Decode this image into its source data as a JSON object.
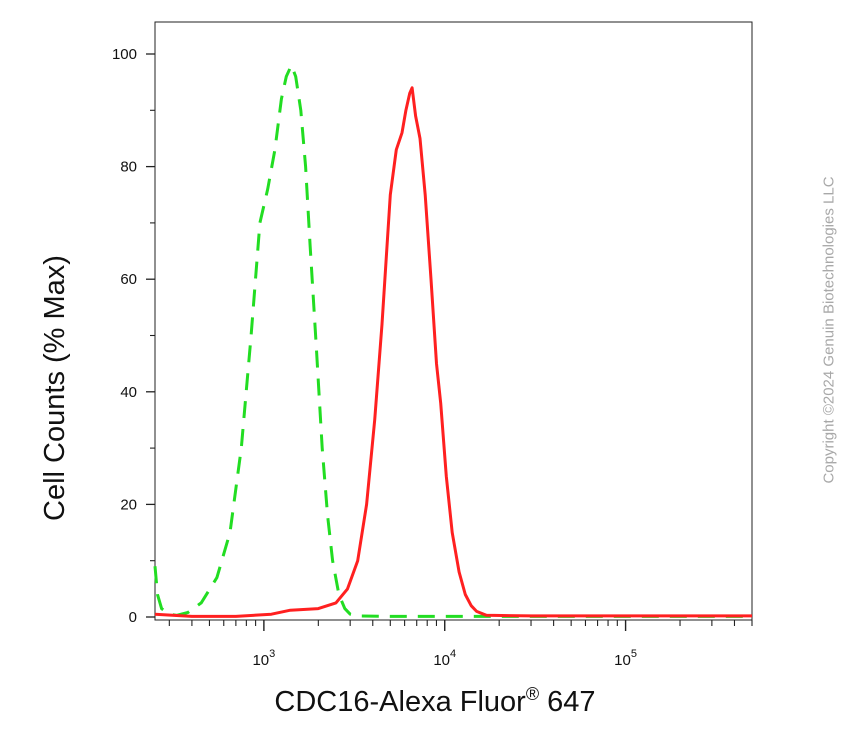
{
  "chart_data": {
    "type": "line",
    "title": "",
    "xlabel": "CDC16-Alexa Fluor",
    "xlabel_superscript": "®",
    "xlabel_suffix": " 647",
    "ylabel": "Cell Counts (% Max)",
    "x_scale": "log",
    "xlim": [
      250,
      500000
    ],
    "ylim": [
      0,
      100
    ],
    "y_ticks": [
      0,
      20,
      40,
      60,
      80,
      100
    ],
    "x_major_ticks": [
      {
        "base": "10",
        "exp": "3",
        "value": 1000
      },
      {
        "base": "10",
        "exp": "4",
        "value": 10000
      },
      {
        "base": "10",
        "exp": "5",
        "value": 100000
      }
    ],
    "grid": false,
    "legend": "none",
    "series": [
      {
        "color": "#22dd22",
        "style": "dashed",
        "points": [
          [
            250,
            9
          ],
          [
            258,
            4
          ],
          [
            272,
            1.5
          ],
          [
            300,
            0.5
          ],
          [
            330,
            0.3
          ],
          [
            380,
            0.8
          ],
          [
            450,
            2.5
          ],
          [
            550,
            7
          ],
          [
            650,
            15
          ],
          [
            750,
            30
          ],
          [
            850,
            50
          ],
          [
            950,
            70
          ],
          [
            1050,
            76
          ],
          [
            1150,
            83
          ],
          [
            1250,
            92
          ],
          [
            1330,
            96
          ],
          [
            1420,
            98
          ],
          [
            1500,
            96
          ],
          [
            1600,
            90
          ],
          [
            1700,
            80
          ],
          [
            1800,
            66
          ],
          [
            1950,
            48
          ],
          [
            2100,
            30
          ],
          [
            2250,
            18
          ],
          [
            2400,
            10
          ],
          [
            2600,
            4
          ],
          [
            2800,
            1.5
          ],
          [
            3000,
            0.5
          ],
          [
            3300,
            0.2
          ],
          [
            5000,
            0.1
          ],
          [
            20000,
            0.1
          ],
          [
            500000,
            0.1
          ]
        ]
      },
      {
        "color": "#ff2020",
        "style": "solid",
        "points": [
          [
            250,
            0.5
          ],
          [
            400,
            0.1
          ],
          [
            700,
            0.1
          ],
          [
            1100,
            0.5
          ],
          [
            1400,
            1.2
          ],
          [
            2000,
            1.5
          ],
          [
            2500,
            2.5
          ],
          [
            2900,
            5
          ],
          [
            3300,
            10
          ],
          [
            3700,
            20
          ],
          [
            4100,
            35
          ],
          [
            4500,
            52
          ],
          [
            5000,
            75
          ],
          [
            5400,
            83
          ],
          [
            5800,
            86
          ],
          [
            6100,
            90
          ],
          [
            6400,
            93
          ],
          [
            6600,
            94
          ],
          [
            6900,
            89
          ],
          [
            7300,
            85
          ],
          [
            7800,
            75
          ],
          [
            8400,
            60
          ],
          [
            9000,
            45
          ],
          [
            9500,
            38
          ],
          [
            10200,
            25
          ],
          [
            11000,
            15
          ],
          [
            12000,
            8
          ],
          [
            13000,
            4
          ],
          [
            14000,
            2
          ],
          [
            15000,
            1
          ],
          [
            17000,
            0.3
          ],
          [
            30000,
            0.2
          ],
          [
            100000,
            0.2
          ],
          [
            500000,
            0.2
          ]
        ]
      }
    ]
  },
  "watermark": "Copyright ©2024 Genuin Biotechnologies LLC"
}
